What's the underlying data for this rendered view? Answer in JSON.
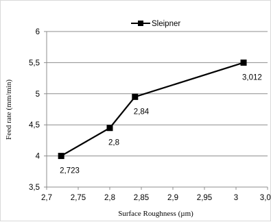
{
  "chart_data": {
    "type": "line",
    "xlabel": "Surface Roughness (µm)",
    "ylabel": "Feed rate (mm/min)",
    "xlim": [
      2.7,
      3.05
    ],
    "ylim": [
      3.5,
      6
    ],
    "x_ticks": [
      "2,7",
      "2,75",
      "2,8",
      "2,85",
      "2,9",
      "2,95",
      "3",
      "3,05"
    ],
    "y_ticks": [
      "3,5",
      "4",
      "4,5",
      "5",
      "5,5",
      "6"
    ],
    "grid": "horizontal",
    "legend_position": "top-center",
    "series": [
      {
        "name": "Sleipner",
        "color": "#000000",
        "marker": "square",
        "x": [
          2.723,
          2.8,
          2.84,
          3.012
        ],
        "y": [
          4.0,
          4.45,
          4.95,
          5.5
        ],
        "labels": [
          "2,723",
          "2,8",
          "2,84",
          "3,012"
        ]
      }
    ]
  }
}
